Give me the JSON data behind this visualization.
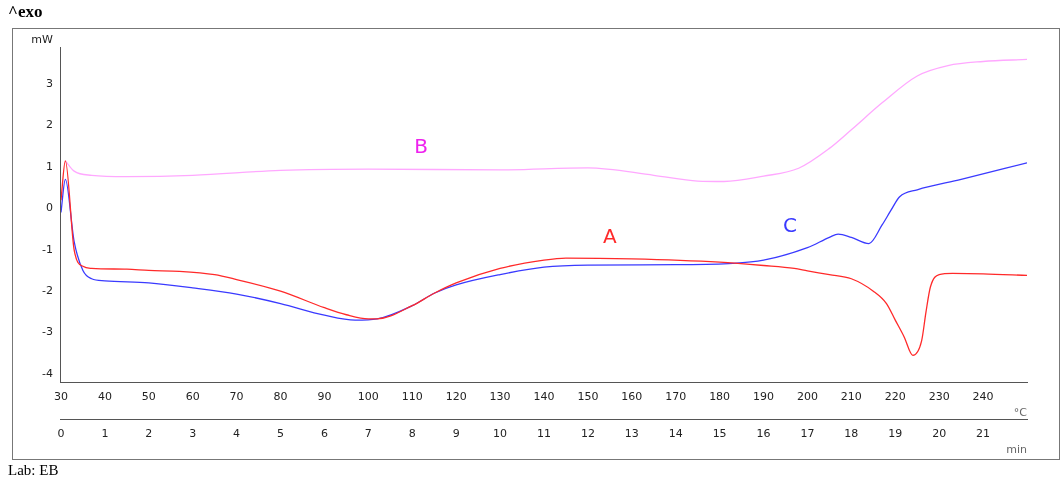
{
  "chart_data": {
    "type": "line",
    "ylabel": "mW",
    "xlabel": "°C",
    "x2label": "min",
    "annotations": [
      "^exo",
      "Lab: EB"
    ],
    "xlim": [
      30,
      250
    ],
    "xticks": [
      30,
      40,
      50,
      60,
      70,
      80,
      90,
      100,
      110,
      120,
      130,
      140,
      150,
      160,
      170,
      180,
      190,
      200,
      210,
      220,
      230,
      240
    ],
    "x2lim": [
      0,
      22
    ],
    "x2ticks": [
      0,
      1,
      2,
      3,
      4,
      5,
      6,
      7,
      8,
      9,
      10,
      11,
      12,
      13,
      14,
      15,
      16,
      17,
      18,
      19,
      20,
      21
    ],
    "ylim": [
      -4.2,
      3.9
    ],
    "yticks": [
      -4,
      -3,
      -2,
      -1,
      0,
      1,
      2,
      3
    ],
    "grid": false,
    "legend": false,
    "marker": "none",
    "line_style": "solid",
    "series": [
      {
        "name": "A",
        "color": "#ff2a2a",
        "x": [
          30,
          31,
          33,
          35,
          37,
          45,
          50,
          57,
          65,
          70,
          80,
          90,
          95,
          100,
          102,
          110,
          115,
          120,
          130,
          140,
          145,
          160,
          180,
          190,
          197,
          200,
          205,
          210,
          215,
          218,
          220,
          222,
          224,
          226,
          227,
          228,
          230,
          233,
          240,
          250
        ],
        "values": [
          0.2,
          1.15,
          -1.0,
          -1.4,
          -1.45,
          -1.47,
          -1.5,
          -1.52,
          -1.6,
          -1.72,
          -2.0,
          -2.4,
          -2.57,
          -2.67,
          -2.67,
          -2.35,
          -2.05,
          -1.8,
          -1.45,
          -1.25,
          -1.2,
          -1.22,
          -1.3,
          -1.38,
          -1.45,
          -1.51,
          -1.6,
          -1.7,
          -2.0,
          -2.3,
          -2.7,
          -3.1,
          -3.55,
          -3.2,
          -2.5,
          -1.9,
          -1.6,
          -1.57,
          -1.58,
          -1.62
        ]
      },
      {
        "name": "B",
        "color": "#ffa8ff",
        "x": [
          31,
          33,
          37,
          45,
          60,
          80,
          100,
          130,
          150,
          165,
          175,
          181,
          190,
          198,
          205,
          210,
          217,
          225,
          232,
          240,
          250
        ],
        "values": [
          1.15,
          0.9,
          0.8,
          0.77,
          0.8,
          0.92,
          0.95,
          0.93,
          0.98,
          0.8,
          0.66,
          0.65,
          0.78,
          0.97,
          1.45,
          1.9,
          2.55,
          3.2,
          3.45,
          3.55,
          3.6
        ]
      },
      {
        "name": "C",
        "color": "#3a3aff",
        "x": [
          30,
          31,
          33,
          35,
          37,
          40,
          50,
          60,
          70,
          80,
          90,
          97,
          102,
          110,
          115,
          120,
          130,
          140,
          150,
          170,
          183,
          190,
          200,
          205,
          207,
          210,
          214,
          217,
          219,
          221,
          225,
          235,
          250
        ],
        "values": [
          -0.1,
          0.7,
          -0.8,
          -1.5,
          -1.7,
          -1.75,
          -1.8,
          -1.92,
          -2.07,
          -2.3,
          -2.58,
          -2.7,
          -2.67,
          -2.35,
          -2.05,
          -1.85,
          -1.6,
          -1.42,
          -1.37,
          -1.36,
          -1.33,
          -1.25,
          -0.95,
          -0.7,
          -0.62,
          -0.7,
          -0.85,
          -0.4,
          -0.05,
          0.28,
          0.45,
          0.7,
          1.1
        ]
      }
    ]
  }
}
